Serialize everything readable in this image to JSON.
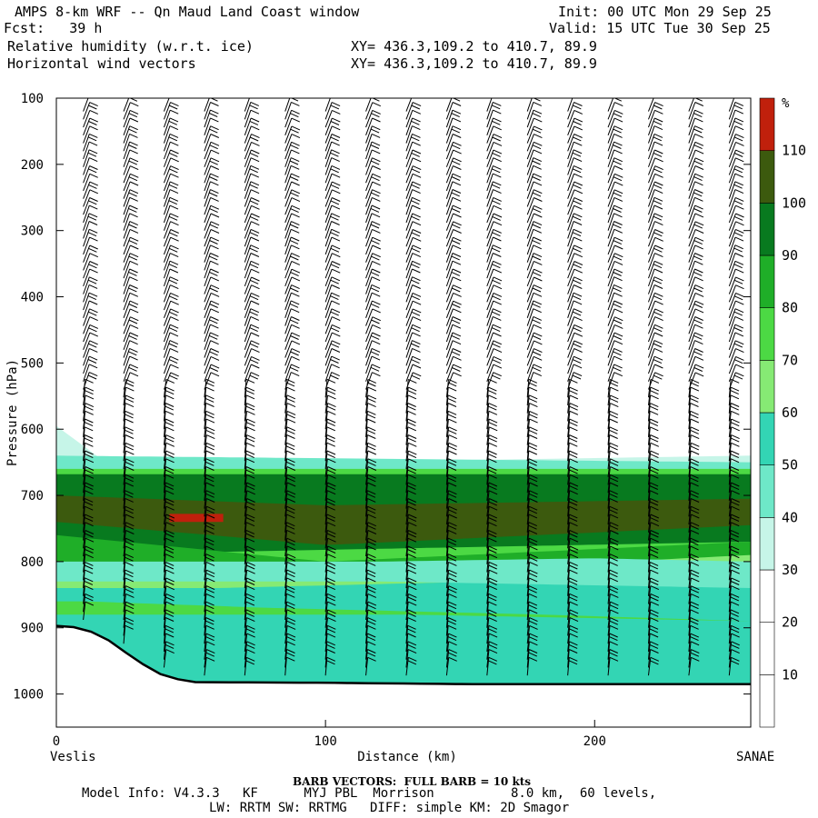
{
  "header": {
    "title": "AMPS 8-km WRF -- Qn Maud Land Coast window",
    "forecast": "Fcst:   39 h",
    "init": "Init: 00 UTC Mon 29 Sep 25",
    "valid": "Valid: 15 UTC Tue 30 Sep 25",
    "field1": "Relative humidity (w.r.t. ice)",
    "field2": "Horizontal wind vectors",
    "xy1": "XY= 436.3,109.2 to 410.7, 89.9",
    "xy2": "XY= 436.3,109.2 to 410.7, 89.9"
  },
  "footer": {
    "barb_note": "BARB VECTORS:  FULL BARB = 10 kts",
    "model_line1": "Model Info: V4.3.3   KF      MYJ PBL  Morrison          8.0 km,  60 levels,",
    "model_line2": "LW: RRTM SW: RRTMG   DIFF: simple KM: 2D Smagor"
  },
  "chart_data": {
    "type": "heatmap",
    "title": "Relative humidity (w.r.t. ice) and horizontal wind vectors, cross-section",
    "xlabel": "Distance (km)",
    "ylabel": "Pressure (hPa)",
    "x_endpoints": {
      "left": "Veslis",
      "right": "SANAE"
    },
    "xlim": [
      0,
      258
    ],
    "ylim": [
      1050,
      100
    ],
    "xticks": [
      0,
      100,
      200
    ],
    "yticks": [
      100,
      200,
      300,
      400,
      500,
      600,
      700,
      800,
      900,
      1000
    ],
    "colorbar": {
      "unit": "%",
      "levels": [
        10,
        20,
        30,
        40,
        50,
        60,
        70,
        80,
        90,
        100,
        110
      ],
      "colors": [
        "#ffffff",
        "#ffffff",
        "#ffffff",
        "#c6f5e8",
        "#6ee8c8",
        "#33d5b4",
        "#86ea74",
        "#4cd944",
        "#1fae28",
        "#087a1f",
        "#3c5a0e",
        "#c0200c"
      ]
    },
    "terrain_pressure_hPa": [
      [
        0,
        897
      ],
      [
        10,
        900
      ],
      [
        20,
        920
      ],
      [
        30,
        950
      ],
      [
        40,
        973
      ],
      [
        50,
        982
      ],
      [
        100,
        983
      ],
      [
        150,
        985
      ],
      [
        200,
        985
      ],
      [
        258,
        985
      ]
    ],
    "rh_layers": [
      {
        "rh_min": 30,
        "top_hPa": [
          [
            0,
            595
          ],
          [
            20,
            655
          ],
          [
            258,
            640
          ]
        ],
        "bottom_hPa": [
          [
            0,
            700
          ],
          [
            258,
            790
          ]
        ]
      },
      {
        "rh_min": 40,
        "top_hPa": [
          [
            0,
            640
          ],
          [
            258,
            650
          ]
        ],
        "bottom_hPa": [
          [
            0,
            690
          ],
          [
            258,
            700
          ]
        ]
      },
      {
        "rh_min": 70,
        "top_hPa": [
          [
            0,
            660
          ],
          [
            258,
            660
          ]
        ],
        "bottom_hPa": [
          [
            0,
            900
          ],
          [
            258,
            985
          ]
        ]
      },
      {
        "rh_min": 100,
        "top_hPa": [
          [
            0,
            700
          ],
          [
            100,
            715
          ],
          [
            258,
            705
          ]
        ],
        "bottom_hPa": [
          [
            0,
            740
          ],
          [
            100,
            775
          ],
          [
            258,
            745
          ]
        ]
      },
      {
        "rh_min": 110,
        "top_hPa": [
          [
            42,
            728
          ]
        ],
        "bottom_hPa": [
          [
            62,
            740
          ]
        ]
      }
    ],
    "wind_barbs": {
      "columns_km": [
        10,
        25,
        40,
        55,
        70,
        85,
        100,
        115,
        130,
        145,
        160,
        175,
        190,
        205,
        220,
        235,
        250
      ],
      "full_barb_kts": 10
    }
  }
}
